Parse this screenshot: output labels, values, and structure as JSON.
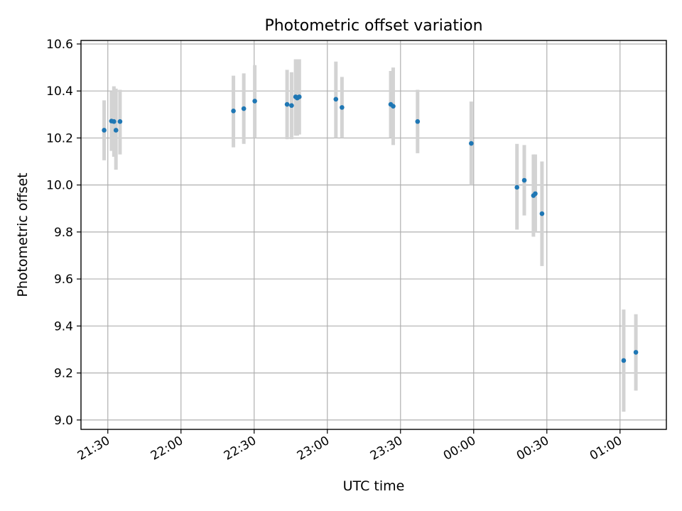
{
  "chart_data": {
    "type": "scatter",
    "title": "Photometric offset variation",
    "xlabel": "UTC time",
    "ylabel": "Photometric offset",
    "xlim": [
      "21:19",
      "01:19"
    ],
    "ylim": [
      8.96,
      10.615
    ],
    "grid": true,
    "x_ticks": [
      "21:30",
      "22:00",
      "22:30",
      "23:00",
      "23:30",
      "00:00",
      "00:30",
      "01:00"
    ],
    "y_ticks": [
      "9.0",
      "9.2",
      "9.4",
      "9.6",
      "9.8",
      "10.0",
      "10.2",
      "10.4",
      "10.6"
    ],
    "marker_color": "#1f77b4",
    "errorbar_color": "#d3d3d3",
    "points": [
      {
        "x": "21:28:30",
        "y": 10.233,
        "lo": 10.105,
        "hi": 10.36
      },
      {
        "x": "21:31:30",
        "y": 10.272,
        "lo": 10.145,
        "hi": 10.4
      },
      {
        "x": "21:32:30",
        "y": 10.27,
        "lo": 10.12,
        "hi": 10.42
      },
      {
        "x": "21:33:20",
        "y": 10.233,
        "lo": 10.065,
        "hi": 10.41
      },
      {
        "x": "21:35:00",
        "y": 10.27,
        "lo": 10.13,
        "hi": 10.405
      },
      {
        "x": "22:21:30",
        "y": 10.315,
        "lo": 10.16,
        "hi": 10.465
      },
      {
        "x": "22:25:45",
        "y": 10.325,
        "lo": 10.175,
        "hi": 10.475
      },
      {
        "x": "22:30:15",
        "y": 10.357,
        "lo": 10.2,
        "hi": 10.51
      },
      {
        "x": "22:43:30",
        "y": 10.343,
        "lo": 10.195,
        "hi": 10.49
      },
      {
        "x": "22:45:20",
        "y": 10.338,
        "lo": 10.195,
        "hi": 10.48
      },
      {
        "x": "22:47:00",
        "y": 10.375,
        "lo": 10.21,
        "hi": 10.535
      },
      {
        "x": "22:47:40",
        "y": 10.37,
        "lo": 10.21,
        "hi": 10.535
      },
      {
        "x": "22:48:30",
        "y": 10.375,
        "lo": 10.215,
        "hi": 10.535
      },
      {
        "x": "23:03:30",
        "y": 10.365,
        "lo": 10.2,
        "hi": 10.525
      },
      {
        "x": "23:06:00",
        "y": 10.33,
        "lo": 10.2,
        "hi": 10.46
      },
      {
        "x": "23:26:00",
        "y": 10.343,
        "lo": 10.2,
        "hi": 10.485
      },
      {
        "x": "23:27:00",
        "y": 10.335,
        "lo": 10.17,
        "hi": 10.5
      },
      {
        "x": "23:37:00",
        "y": 10.27,
        "lo": 10.135,
        "hi": 10.405
      },
      {
        "x": "23:59:00",
        "y": 10.177,
        "lo": 10.0,
        "hi": 10.355
      },
      {
        "x": "00:17:45",
        "y": 9.99,
        "lo": 9.81,
        "hi": 10.175
      },
      {
        "x": "00:20:45",
        "y": 10.02,
        "lo": 9.87,
        "hi": 10.17
      },
      {
        "x": "00:24:30",
        "y": 9.955,
        "lo": 9.78,
        "hi": 10.13
      },
      {
        "x": "00:25:15",
        "y": 9.963,
        "lo": 9.8,
        "hi": 10.13
      },
      {
        "x": "00:28:00",
        "y": 9.878,
        "lo": 9.655,
        "hi": 10.1
      },
      {
        "x": "01:01:30",
        "y": 9.253,
        "lo": 9.035,
        "hi": 9.47
      },
      {
        "x": "01:06:30",
        "y": 9.288,
        "lo": 9.125,
        "hi": 9.45
      }
    ]
  }
}
